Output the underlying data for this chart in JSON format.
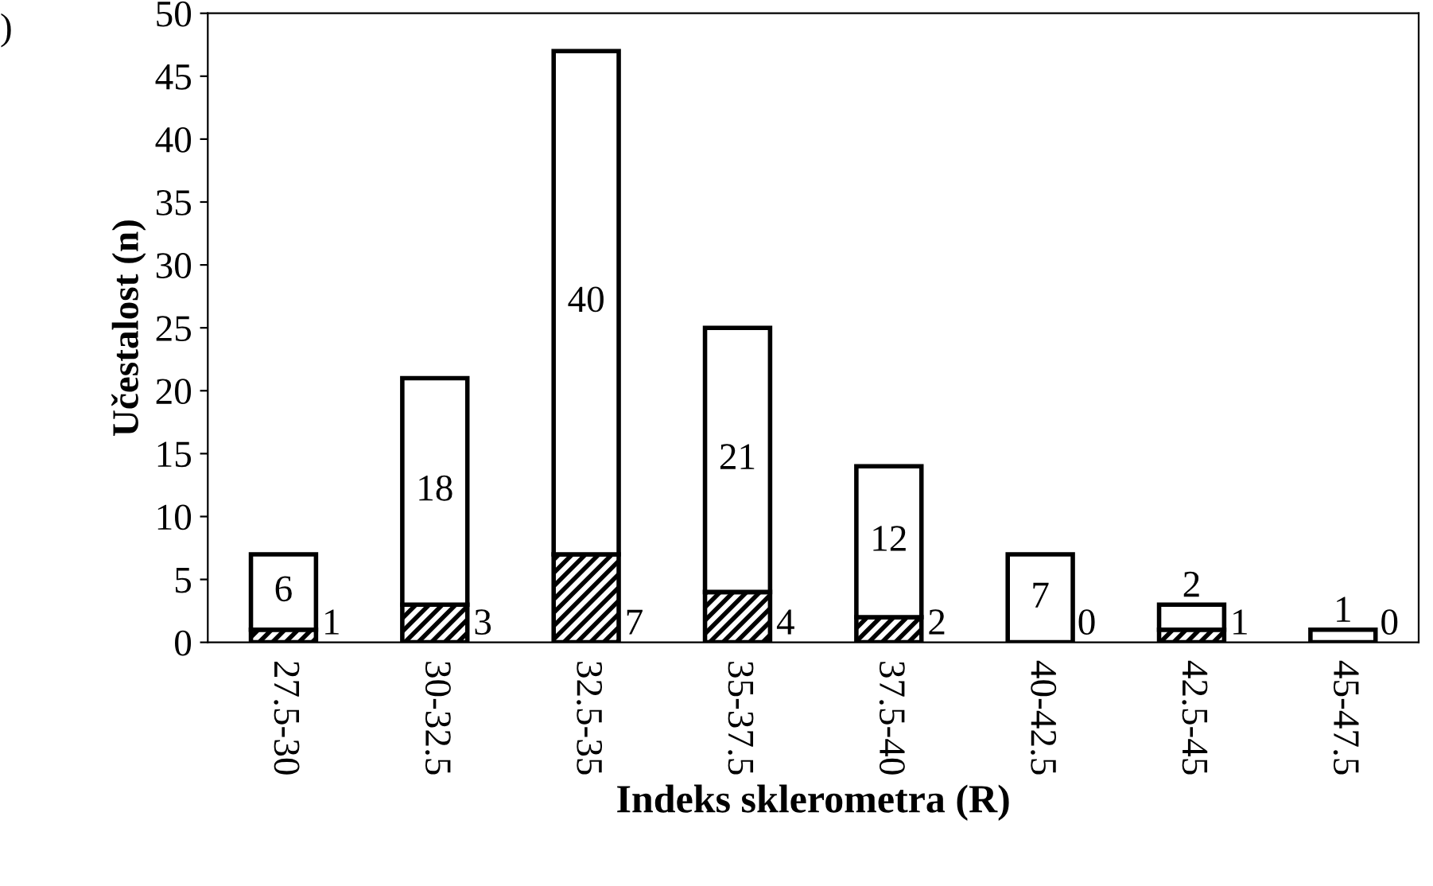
{
  "chart_data": {
    "type": "bar",
    "stacked": true,
    "xlabel": "Indeks sklerometra (R)",
    "ylabel": "Učestalost (n)",
    "annotations": [
      ")"
    ],
    "categories": [
      "27.5-30",
      "30-32.5",
      "32.5-35",
      "35-37.5",
      "37.5-40",
      "40-42.5",
      "42.5-45",
      "45-47.5"
    ],
    "series": [
      {
        "color": "#000000",
        "values": [
          1,
          3,
          7,
          4,
          2,
          0,
          1,
          0
        ]
      },
      {
        "color": "#ffffff",
        "values": [
          6,
          18,
          40,
          21,
          12,
          7,
          2,
          1
        ]
      }
    ],
    "ylim": [
      0,
      50
    ],
    "yticks": [
      0,
      5,
      10,
      15,
      20,
      25,
      30,
      35,
      40,
      45,
      50
    ],
    "data_labels": true,
    "grid": false,
    "legend": false
  }
}
